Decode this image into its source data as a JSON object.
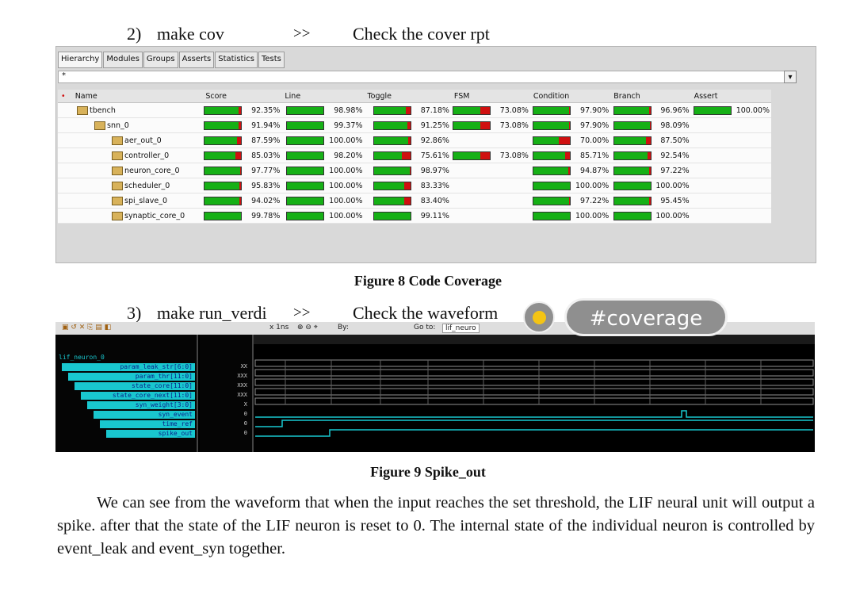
{
  "step2": {
    "num": "2)",
    "cmd": "make cov",
    "arrow": ">>",
    "desc": "Check the cover rpt"
  },
  "coverage_tool": {
    "tabs": [
      "Hierarchy",
      "Modules",
      "Groups",
      "Asserts",
      "Statistics",
      "Tests"
    ],
    "filter": "*",
    "columns": [
      "Name",
      "Score",
      "Line",
      "Toggle",
      "FSM",
      "Condition",
      "Branch",
      "Assert"
    ],
    "rows": [
      {
        "name": "tbench",
        "score": "92.35%",
        "line": "98.98%",
        "toggle": "87.18%",
        "fsm": "73.08%",
        "condition": "97.90%",
        "branch": "96.96%",
        "assert": "100.00%"
      },
      {
        "name": "snn_0",
        "score": "91.94%",
        "line": "99.37%",
        "toggle": "91.25%",
        "fsm": "73.08%",
        "condition": "97.90%",
        "branch": "98.09%",
        "assert": ""
      },
      {
        "name": "aer_out_0",
        "score": "87.59%",
        "line": "100.00%",
        "toggle": "92.86%",
        "fsm": "",
        "condition": "70.00%",
        "branch": "87.50%",
        "assert": ""
      },
      {
        "name": "controller_0",
        "score": "85.03%",
        "line": "98.20%",
        "toggle": "75.61%",
        "fsm": "73.08%",
        "condition": "85.71%",
        "branch": "92.54%",
        "assert": ""
      },
      {
        "name": "neuron_core_0",
        "score": "97.77%",
        "line": "100.00%",
        "toggle": "98.97%",
        "fsm": "",
        "condition": "94.87%",
        "branch": "97.22%",
        "assert": ""
      },
      {
        "name": "scheduler_0",
        "score": "95.83%",
        "line": "100.00%",
        "toggle": "83.33%",
        "fsm": "",
        "condition": "100.00%",
        "branch": "100.00%",
        "assert": ""
      },
      {
        "name": "spi_slave_0",
        "score": "94.02%",
        "line": "100.00%",
        "toggle": "83.40%",
        "fsm": "",
        "condition": "97.22%",
        "branch": "95.45%",
        "assert": ""
      },
      {
        "name": "synaptic_core_0",
        "score": "99.78%",
        "line": "100.00%",
        "toggle": "99.11%",
        "fsm": "",
        "condition": "100.00%",
        "branch": "100.00%",
        "assert": ""
      }
    ]
  },
  "figure8_caption": "Figure 8 Code Coverage",
  "step3": {
    "num": "3)",
    "cmd": "make run_verdi",
    "arrow": ">>",
    "desc": "Check the waveform"
  },
  "hashtag": "#coverage",
  "waveform": {
    "toolbar": {
      "zoom": "x 1ns",
      "by": "By:",
      "goto": "Go to:",
      "goto_value": "lif_neuro"
    },
    "scope": "lif_neuron_0",
    "signals": [
      "param_leak_str[6:0]",
      "param_thr[11:0]",
      "state_core[11:0]",
      "state_core_next[11:0]",
      "syn_weight[3:0]",
      "syn_event",
      "time_ref",
      "spike_out"
    ],
    "values": [
      "XX",
      "XXX",
      "XXX",
      "XXX",
      "X",
      "0",
      "0",
      "0"
    ]
  },
  "figure9_caption": "Figure 9 Spike_out",
  "paragraph": "We can see from the waveform that when the input reaches the set threshold, the LIF neural unit will output a spike. after that the state of the LIF neuron is reset to 0. The internal state of the individual neuron is controlled by event_leak and event_syn together."
}
